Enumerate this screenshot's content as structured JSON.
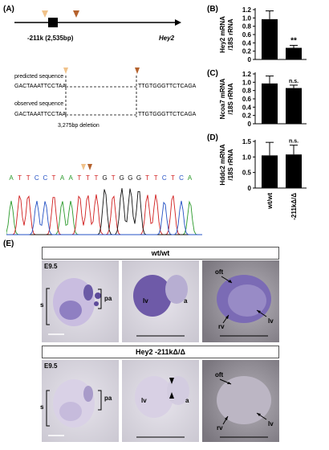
{
  "panels": {
    "A": {
      "label": "(A)"
    },
    "B": {
      "label": "(B)"
    },
    "C": {
      "label": "(C)"
    },
    "D": {
      "label": "(D)"
    },
    "E": {
      "label": "(E)"
    }
  },
  "locus": {
    "left_label": "-211k (2,535bp)",
    "gene_label": "Hey2"
  },
  "sequences": {
    "predicted_title": "predicted sequence",
    "predicted_left": "GACTAAATTCCTAA",
    "predicted_right": "TTGTGGGTTCTCAGA",
    "observed_title": "observed sequence",
    "observed_left": "GACTAAATTCCTAA",
    "observed_right": "TTGTGGGTTCTCAGA",
    "deletion_label": "3,275bp deletion"
  },
  "chromatogram": {
    "bases": [
      "A",
      "T",
      "T",
      "C",
      "C",
      "T",
      "A",
      "A",
      "T",
      "T",
      "T",
      "G",
      "T",
      "G",
      "G",
      "G",
      "T",
      "T",
      "C",
      "T",
      "C",
      "A"
    ]
  },
  "chart_data": [
    {
      "type": "bar",
      "panel": "B",
      "ylabel_line1": "Hey2 mRNA",
      "ylabel_line2": "/18S rRNA",
      "ylim": [
        0,
        1.2
      ],
      "yticks": [
        "0",
        "0.2",
        "0.4",
        "0.6",
        "0.8",
        "1.0",
        "1.2"
      ],
      "values": [
        0.97,
        0.28
      ],
      "errors": [
        0.2,
        0.06
      ],
      "annotations": [
        "",
        "**"
      ]
    },
    {
      "type": "bar",
      "panel": "C",
      "ylabel_line1": "Ncoa7 mRNA",
      "ylabel_line2": "/18S rRNA",
      "ylim": [
        0,
        1.2
      ],
      "yticks": [
        "0",
        "0.2",
        "0.4",
        "0.6",
        "0.8",
        "1.0",
        "1.2"
      ],
      "values": [
        0.97,
        0.86
      ],
      "errors": [
        0.18,
        0.07
      ],
      "annotations": [
        "",
        "n.s."
      ]
    },
    {
      "type": "bar",
      "panel": "D",
      "ylabel_line1": "Hddc2 mRNA",
      "ylabel_line2": "/18S rRNA",
      "ylim": [
        0,
        1.5
      ],
      "yticks": [
        "0",
        "0.5",
        "1.0",
        "1.5"
      ],
      "values": [
        1.05,
        1.08
      ],
      "errors": [
        0.42,
        0.3
      ],
      "annotations": [
        "",
        "n.s."
      ],
      "categories": [
        "wt/wt",
        "-211kΔ/Δ"
      ]
    }
  ],
  "embryos": {
    "row1_title": "wt/wt",
    "row2_title": "Hey2 -211kΔ/Δ",
    "stage": "E9.5",
    "s": "s",
    "pa": "pa",
    "lv": "lv",
    "a": "a",
    "oft": "oft",
    "rv": "rv"
  }
}
